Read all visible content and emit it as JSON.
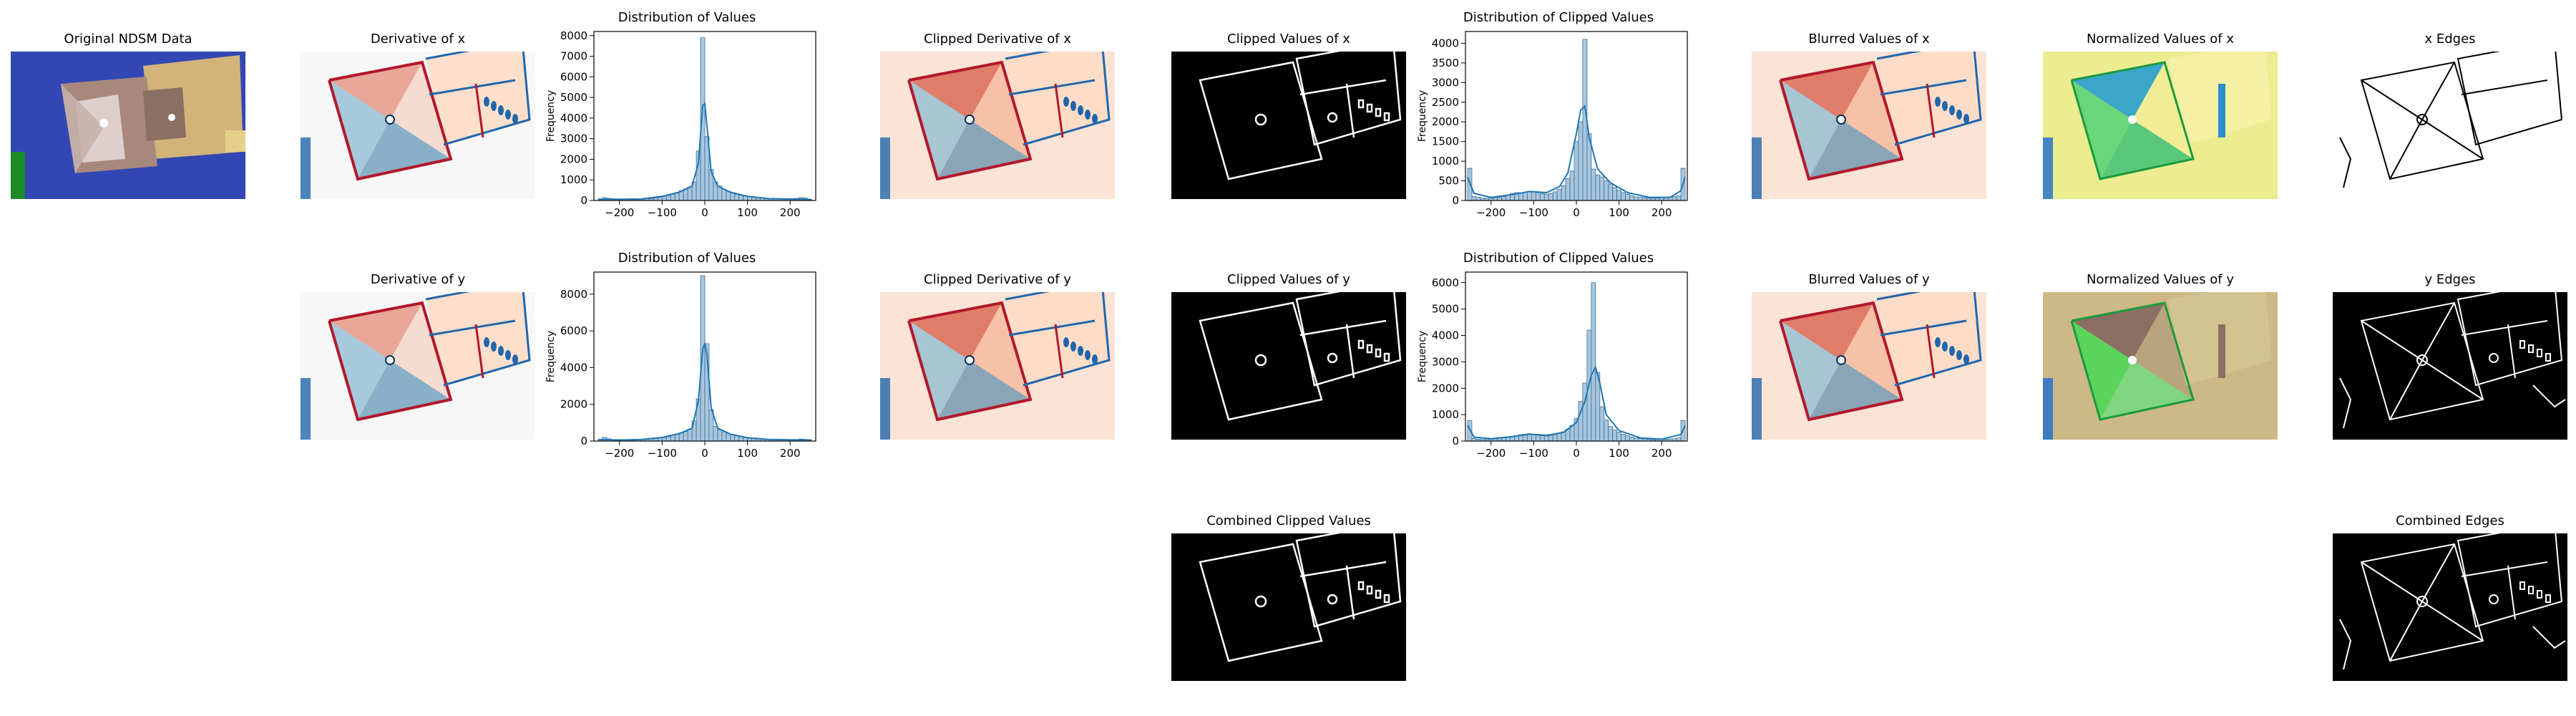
{
  "colors": {
    "hist_fill": "#a9c6de",
    "hist_edge": "#3d6e94",
    "kde": "#1f77b4",
    "ndsm_low": "#2b3ea6",
    "ndsm_high": "#d2b47a",
    "rdbu_neg": "#b2182b",
    "rdbu_pos": "#2166ac",
    "edge_bg": "#000000",
    "edge_fg": "#ffffff"
  },
  "panels": {
    "original": {
      "title": "Original NDSM Data",
      "colormap": "terrain"
    },
    "deriv_x": {
      "title": "Derivative of x",
      "colormap": "RdBu"
    },
    "deriv_y": {
      "title": "Derivative of y",
      "colormap": "RdBu"
    },
    "clipped_deriv_x": {
      "title": "Clipped Derivative of x",
      "colormap": "RdBu"
    },
    "clipped_deriv_y": {
      "title": "Clipped Derivative of y",
      "colormap": "RdBu"
    },
    "clipped_vals_x": {
      "title": "Clipped Values  of x",
      "colormap": "gray"
    },
    "clipped_vals_y": {
      "title": "Clipped Values  of y",
      "colormap": "gray"
    },
    "combined_clipped": {
      "title": "Combined Clipped Values",
      "colormap": "gray"
    },
    "blurred_x": {
      "title": "Blurred Values of x",
      "colormap": "RdBu"
    },
    "blurred_y": {
      "title": "Blurred Values of y",
      "colormap": "RdBu"
    },
    "normalized_x": {
      "title": "Normalized Values of x",
      "colormap": "terrain"
    },
    "normalized_y": {
      "title": "Normalized Values of y",
      "colormap": "terrain"
    },
    "edges_x": {
      "title": "x Edges",
      "colormap": "gray"
    },
    "edges_y": {
      "title": "y Edges",
      "colormap": "gray"
    },
    "edges_combined": {
      "title": "Combined Edges",
      "colormap": "gray"
    }
  },
  "chart_data": [
    {
      "type": "bar",
      "title": "Distribution of Values",
      "xlabel": "",
      "ylabel": "Frequency",
      "xlim": [
        -260,
        260
      ],
      "ylim": [
        0,
        8200
      ],
      "xticks": [
        -200,
        -100,
        0,
        100,
        200
      ],
      "yticks": [
        0,
        1000,
        2000,
        3000,
        4000,
        5000,
        6000,
        7000,
        8000
      ],
      "bin_centers": [
        -245,
        -235,
        -225,
        -215,
        -205,
        -195,
        -185,
        -175,
        -165,
        -155,
        -145,
        -135,
        -125,
        -115,
        -105,
        -95,
        -85,
        -75,
        -65,
        -55,
        -45,
        -35,
        -25,
        -15,
        -5,
        5,
        15,
        25,
        35,
        45,
        55,
        65,
        75,
        85,
        95,
        105,
        115,
        125,
        135,
        145,
        155,
        165,
        175,
        185,
        195,
        205,
        215,
        225,
        235,
        245
      ],
      "values": [
        60,
        140,
        100,
        80,
        60,
        50,
        50,
        40,
        50,
        50,
        60,
        80,
        90,
        110,
        150,
        180,
        240,
        300,
        380,
        480,
        560,
        650,
        900,
        2400,
        7900,
        3100,
        1500,
        900,
        700,
        550,
        450,
        380,
        300,
        260,
        220,
        180,
        160,
        140,
        120,
        100,
        90,
        90,
        80,
        80,
        80,
        90,
        100,
        140,
        120,
        60
      ],
      "kde": [
        [
          -250,
          60
        ],
        [
          -200,
          60
        ],
        [
          -150,
          70
        ],
        [
          -100,
          200
        ],
        [
          -60,
          400
        ],
        [
          -30,
          700
        ],
        [
          -15,
          1800
        ],
        [
          -5,
          4600
        ],
        [
          0,
          4700
        ],
        [
          5,
          3600
        ],
        [
          15,
          1400
        ],
        [
          30,
          700
        ],
        [
          60,
          400
        ],
        [
          100,
          200
        ],
        [
          150,
          90
        ],
        [
          200,
          70
        ],
        [
          250,
          50
        ]
      ]
    },
    {
      "type": "bar",
      "title": "Distribution of Values",
      "xlabel": "",
      "ylabel": "Frequency",
      "xlim": [
        -260,
        260
      ],
      "ylim": [
        0,
        9200
      ],
      "xticks": [
        -200,
        -100,
        0,
        100,
        200
      ],
      "yticks": [
        0,
        2000,
        4000,
        6000,
        8000
      ],
      "bin_centers": [
        -245,
        -235,
        -225,
        -215,
        -205,
        -195,
        -185,
        -175,
        -165,
        -155,
        -145,
        -135,
        -125,
        -115,
        -105,
        -95,
        -85,
        -75,
        -65,
        -55,
        -45,
        -35,
        -25,
        -15,
        -5,
        5,
        15,
        25,
        35,
        45,
        55,
        65,
        75,
        85,
        95,
        105,
        115,
        125,
        135,
        145,
        155,
        165,
        175,
        185,
        195,
        205,
        215,
        225,
        235,
        245
      ],
      "values": [
        80,
        200,
        120,
        80,
        60,
        50,
        50,
        50,
        50,
        60,
        70,
        90,
        110,
        140,
        170,
        200,
        250,
        320,
        380,
        450,
        520,
        650,
        1100,
        2300,
        9000,
        5300,
        1700,
        800,
        600,
        500,
        420,
        360,
        280,
        240,
        200,
        160,
        140,
        120,
        100,
        90,
        80,
        80,
        70,
        70,
        70,
        80,
        80,
        110,
        90,
        60
      ],
      "kde": [
        [
          -250,
          80
        ],
        [
          -200,
          60
        ],
        [
          -150,
          80
        ],
        [
          -100,
          200
        ],
        [
          -60,
          400
        ],
        [
          -30,
          700
        ],
        [
          -15,
          2200
        ],
        [
          -5,
          5000
        ],
        [
          0,
          5300
        ],
        [
          5,
          4700
        ],
        [
          15,
          1800
        ],
        [
          30,
          700
        ],
        [
          60,
          380
        ],
        [
          100,
          180
        ],
        [
          150,
          90
        ],
        [
          200,
          70
        ],
        [
          250,
          60
        ]
      ]
    },
    {
      "type": "bar",
      "title": "Distribution of Clipped Values",
      "xlabel": "",
      "ylabel": "Frequency",
      "xlim": [
        -260,
        260
      ],
      "ylim": [
        0,
        4300
      ],
      "xticks": [
        -200,
        -100,
        0,
        100,
        200
      ],
      "yticks": [
        0,
        500,
        1000,
        1500,
        2000,
        2500,
        3000,
        3500,
        4000
      ],
      "bin_centers": [
        -250,
        -240,
        -230,
        -220,
        -210,
        -200,
        -190,
        -180,
        -170,
        -160,
        -150,
        -140,
        -130,
        -120,
        -110,
        -100,
        -90,
        -80,
        -70,
        -60,
        -50,
        -40,
        -30,
        -20,
        -10,
        0,
        10,
        20,
        30,
        40,
        50,
        60,
        70,
        80,
        90,
        100,
        110,
        120,
        130,
        140,
        150,
        160,
        170,
        180,
        190,
        200,
        210,
        220,
        230,
        240,
        250
      ],
      "values": [
        820,
        100,
        80,
        60,
        60,
        60,
        70,
        80,
        100,
        140,
        180,
        200,
        200,
        210,
        230,
        220,
        200,
        180,
        160,
        180,
        220,
        280,
        380,
        560,
        750,
        1500,
        2000,
        4100,
        1700,
        800,
        650,
        600,
        500,
        420,
        330,
        260,
        200,
        160,
        120,
        90,
        80,
        70,
        60,
        60,
        60,
        70,
        80,
        90,
        100,
        120,
        820
      ],
      "kde": [
        [
          -255,
          600
        ],
        [
          -240,
          180
        ],
        [
          -200,
          80
        ],
        [
          -150,
          150
        ],
        [
          -110,
          230
        ],
        [
          -70,
          200
        ],
        [
          -40,
          350
        ],
        [
          -20,
          700
        ],
        [
          0,
          1700
        ],
        [
          10,
          2300
        ],
        [
          20,
          2400
        ],
        [
          30,
          1600
        ],
        [
          50,
          800
        ],
        [
          80,
          450
        ],
        [
          120,
          200
        ],
        [
          170,
          80
        ],
        [
          220,
          80
        ],
        [
          245,
          250
        ],
        [
          255,
          600
        ]
      ]
    },
    {
      "type": "bar",
      "title": "Distribution of Clipped Values",
      "xlabel": "",
      "ylabel": "Frequency",
      "xlim": [
        -260,
        260
      ],
      "ylim": [
        0,
        6400
      ],
      "xticks": [
        -200,
        -100,
        0,
        100,
        200
      ],
      "yticks": [
        0,
        1000,
        2000,
        3000,
        4000,
        5000,
        6000
      ],
      "bin_centers": [
        -250,
        -240,
        -230,
        -220,
        -210,
        -200,
        -190,
        -180,
        -170,
        -160,
        -150,
        -140,
        -130,
        -120,
        -110,
        -100,
        -90,
        -80,
        -70,
        -60,
        -50,
        -40,
        -30,
        -20,
        -10,
        0,
        10,
        20,
        30,
        40,
        50,
        60,
        70,
        80,
        90,
        100,
        110,
        120,
        130,
        140,
        150,
        160,
        170,
        180,
        190,
        200,
        210,
        220,
        230,
        240,
        250
      ],
      "values": [
        780,
        100,
        70,
        60,
        60,
        70,
        80,
        100,
        120,
        140,
        160,
        200,
        240,
        260,
        280,
        240,
        220,
        200,
        190,
        200,
        230,
        280,
        350,
        450,
        600,
        850,
        1500,
        2200,
        4200,
        6000,
        2600,
        1300,
        800,
        550,
        420,
        330,
        260,
        200,
        150,
        110,
        90,
        80,
        70,
        60,
        60,
        60,
        70,
        80,
        90,
        120,
        780
      ],
      "kde": [
        [
          -255,
          600
        ],
        [
          -240,
          150
        ],
        [
          -200,
          90
        ],
        [
          -150,
          170
        ],
        [
          -110,
          260
        ],
        [
          -70,
          220
        ],
        [
          -30,
          330
        ],
        [
          0,
          700
        ],
        [
          20,
          1500
        ],
        [
          35,
          2500
        ],
        [
          45,
          2800
        ],
        [
          55,
          2200
        ],
        [
          70,
          1000
        ],
        [
          100,
          400
        ],
        [
          150,
          120
        ],
        [
          200,
          70
        ],
        [
          245,
          250
        ],
        [
          255,
          600
        ]
      ]
    }
  ]
}
